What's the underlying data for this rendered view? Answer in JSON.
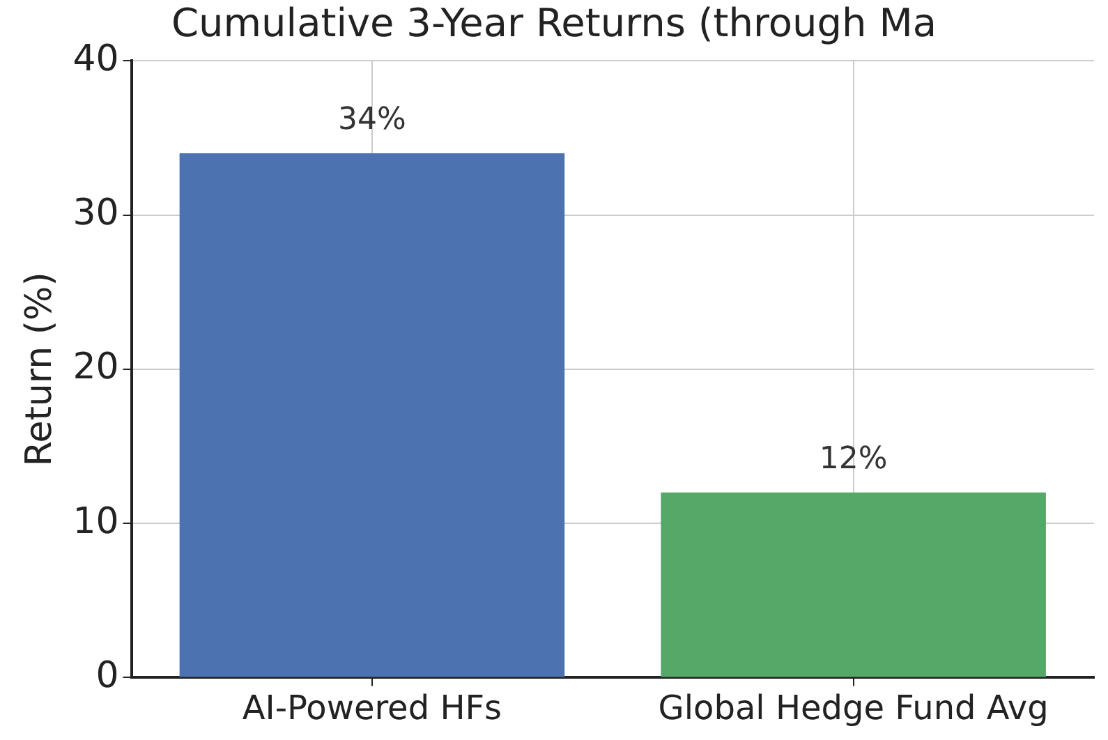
{
  "chart_data": {
    "type": "bar",
    "title": "Cumulative 3-Year Returns (through Ma",
    "ylabel": "Return (%)",
    "categories": [
      "AI-Powered HFs",
      "Global Hedge Fund Avg"
    ],
    "values": [
      34,
      12
    ],
    "colors": [
      "#4c72b0",
      "#55a868"
    ],
    "value_labels": [
      "34%",
      "12%"
    ],
    "ylim": [
      0,
      40
    ],
    "yticks": [
      0,
      10,
      20,
      30,
      40
    ],
    "grid": true,
    "legend": false
  }
}
